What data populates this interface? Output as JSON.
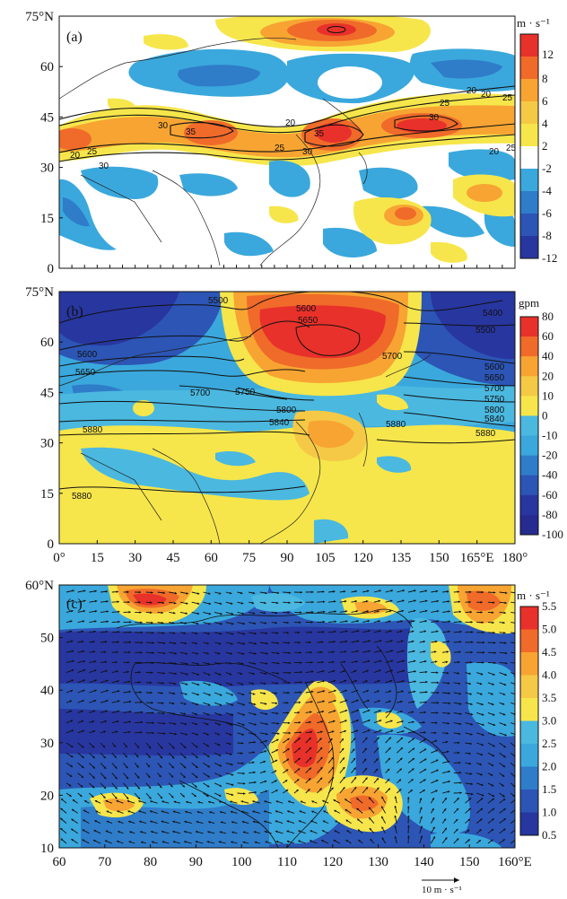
{
  "chart_data": [
    {
      "type": "heatmap",
      "panel_label": "(a)",
      "unit": "m · s⁻¹",
      "y_ticks": [
        "75°N",
        "60",
        "45",
        "30",
        "15",
        "0"
      ],
      "y_values": [
        75,
        60,
        45,
        30,
        15,
        0
      ],
      "xlim": [
        0,
        180
      ],
      "ylim": [
        0,
        75
      ],
      "colorbar": {
        "labels": [
          "12",
          "8",
          "6",
          "4",
          "2",
          "-2",
          "-4",
          "-6",
          "-8",
          "-12"
        ],
        "levels": [
          12,
          8,
          6,
          4,
          2,
          -2,
          -4,
          -6,
          -8,
          -12
        ],
        "colors": [
          "#e8312a",
          "#f06a2a",
          "#f7a433",
          "#f5c946",
          "#f6e64b",
          "#ffffff",
          "#3aa8dc",
          "#2f7cc9",
          "#2c55b5",
          "#2836a0"
        ]
      },
      "contour_labels": [
        "20",
        "25",
        "30",
        "35",
        "30",
        "20",
        "25",
        "30",
        "35",
        "20",
        "25",
        "20",
        "25",
        "30",
        "20",
        "25"
      ],
      "features": [
        {
          "kind": "positive",
          "lon": 100,
          "lat": 70,
          "level": 10
        },
        {
          "kind": "positive",
          "lon": 60,
          "lat": 40,
          "level": 10
        },
        {
          "kind": "positive",
          "lon": 108,
          "lat": 39,
          "level": 12
        },
        {
          "kind": "positive",
          "lon": 150,
          "lat": 40,
          "level": 10
        },
        {
          "kind": "positive",
          "lon": 135,
          "lat": 17,
          "level": 8
        },
        {
          "kind": "negative",
          "lon": 115,
          "lat": 55,
          "level": -10
        },
        {
          "kind": "negative",
          "lon": 40,
          "lat": 57,
          "level": -5
        },
        {
          "kind": "negative",
          "lon": 80,
          "lat": 52,
          "level": -5
        },
        {
          "kind": "negative",
          "lon": 15,
          "lat": 18,
          "level": -5
        },
        {
          "kind": "negative",
          "lon": 165,
          "lat": 55,
          "level": -5
        }
      ]
    },
    {
      "type": "heatmap",
      "panel_label": "(b)",
      "unit": "gpm",
      "y_ticks": [
        "75°N",
        "60",
        "45",
        "30",
        "15",
        "0"
      ],
      "y_values": [
        75,
        60,
        45,
        30,
        15,
        0
      ],
      "x_ticks": [
        "0°",
        "15",
        "30",
        "45",
        "60",
        "75",
        "90",
        "105",
        "120",
        "135",
        "150",
        "165°E",
        "180°"
      ],
      "x_values": [
        0,
        15,
        30,
        45,
        60,
        75,
        90,
        105,
        120,
        135,
        150,
        165,
        180
      ],
      "xlim": [
        0,
        180
      ],
      "ylim": [
        0,
        75
      ],
      "colorbar": {
        "labels": [
          "80",
          "60",
          "40",
          "20",
          "10",
          "0",
          "-10",
          "-20",
          "-40",
          "-60",
          "-80",
          "-100"
        ],
        "levels": [
          80,
          60,
          40,
          20,
          10,
          0,
          -10,
          -20,
          -40,
          -60,
          -80,
          -100
        ],
        "colors": [
          "#e8312a",
          "#f06a2a",
          "#f7a433",
          "#f5c946",
          "#f6e64b",
          "#4bb8e0",
          "#3aa8dc",
          "#2f7cc9",
          "#2c55b5",
          "#2836a0",
          "#262b8f"
        ]
      },
      "contour_labels": [
        "5500",
        "5600",
        "5650",
        "5700",
        "5750",
        "5800",
        "5840",
        "5880",
        "5880",
        "5600",
        "5650",
        "5700",
        "5400",
        "5500",
        "5600",
        "5650",
        "5700",
        "5750",
        "5800",
        "5840",
        "5880",
        "5880"
      ],
      "features": [
        {
          "kind": "positive",
          "lon": 105,
          "lat": 60,
          "level": 90
        },
        {
          "kind": "positive",
          "lon": 110,
          "lat": 32,
          "level": 30
        },
        {
          "kind": "negative",
          "lon": 40,
          "lat": 58,
          "level": -60
        },
        {
          "kind": "negative",
          "lon": 160,
          "lat": 55,
          "level": -60
        }
      ]
    },
    {
      "type": "heatmap",
      "panel_label": "(c)",
      "unit": "m · s⁻¹",
      "y_ticks": [
        "60°N",
        "50",
        "40",
        "30",
        "20",
        "10"
      ],
      "y_values": [
        60,
        50,
        40,
        30,
        20,
        10
      ],
      "x_ticks": [
        "60",
        "70",
        "80",
        "90",
        "100",
        "110",
        "120",
        "130",
        "140",
        "150",
        "160°E"
      ],
      "x_values": [
        60,
        70,
        80,
        90,
        100,
        110,
        120,
        130,
        140,
        150,
        160
      ],
      "xlim": [
        60,
        160
      ],
      "ylim": [
        10,
        60
      ],
      "colorbar": {
        "labels": [
          "5.5",
          "5.0",
          "4.5",
          "4.0",
          "3.5",
          "3.0",
          "2.5",
          "2.0",
          "1.5",
          "1.0",
          "0.5"
        ],
        "levels": [
          5.5,
          5.0,
          4.5,
          4.0,
          3.5,
          3.0,
          2.5,
          2.0,
          1.5,
          1.0,
          0.5
        ],
        "colors": [
          "#e8312a",
          "#f06a2a",
          "#f7a433",
          "#f5c946",
          "#f6e64b",
          "#4bb8e0",
          "#3aa8dc",
          "#2f7cc9",
          "#2c55b5",
          "#2836a0"
        ]
      },
      "vector_scale": "10 m · s⁻¹",
      "features": [
        {
          "kind": "positive",
          "lon": 80,
          "lat": 55,
          "level": 5.5
        },
        {
          "kind": "positive",
          "lon": 111,
          "lat": 29,
          "level": 5.5
        },
        {
          "kind": "positive",
          "lon": 113,
          "lat": 37,
          "level": 4.5
        },
        {
          "kind": "positive",
          "lon": 125,
          "lat": 20,
          "level": 4.5
        },
        {
          "kind": "positive",
          "lon": 153,
          "lat": 55,
          "level": 4.5
        },
        {
          "kind": "positive",
          "lon": 120,
          "lat": 55,
          "level": 4.0
        },
        {
          "kind": "positive",
          "lon": 70,
          "lat": 19,
          "level": 3.5
        }
      ]
    }
  ]
}
